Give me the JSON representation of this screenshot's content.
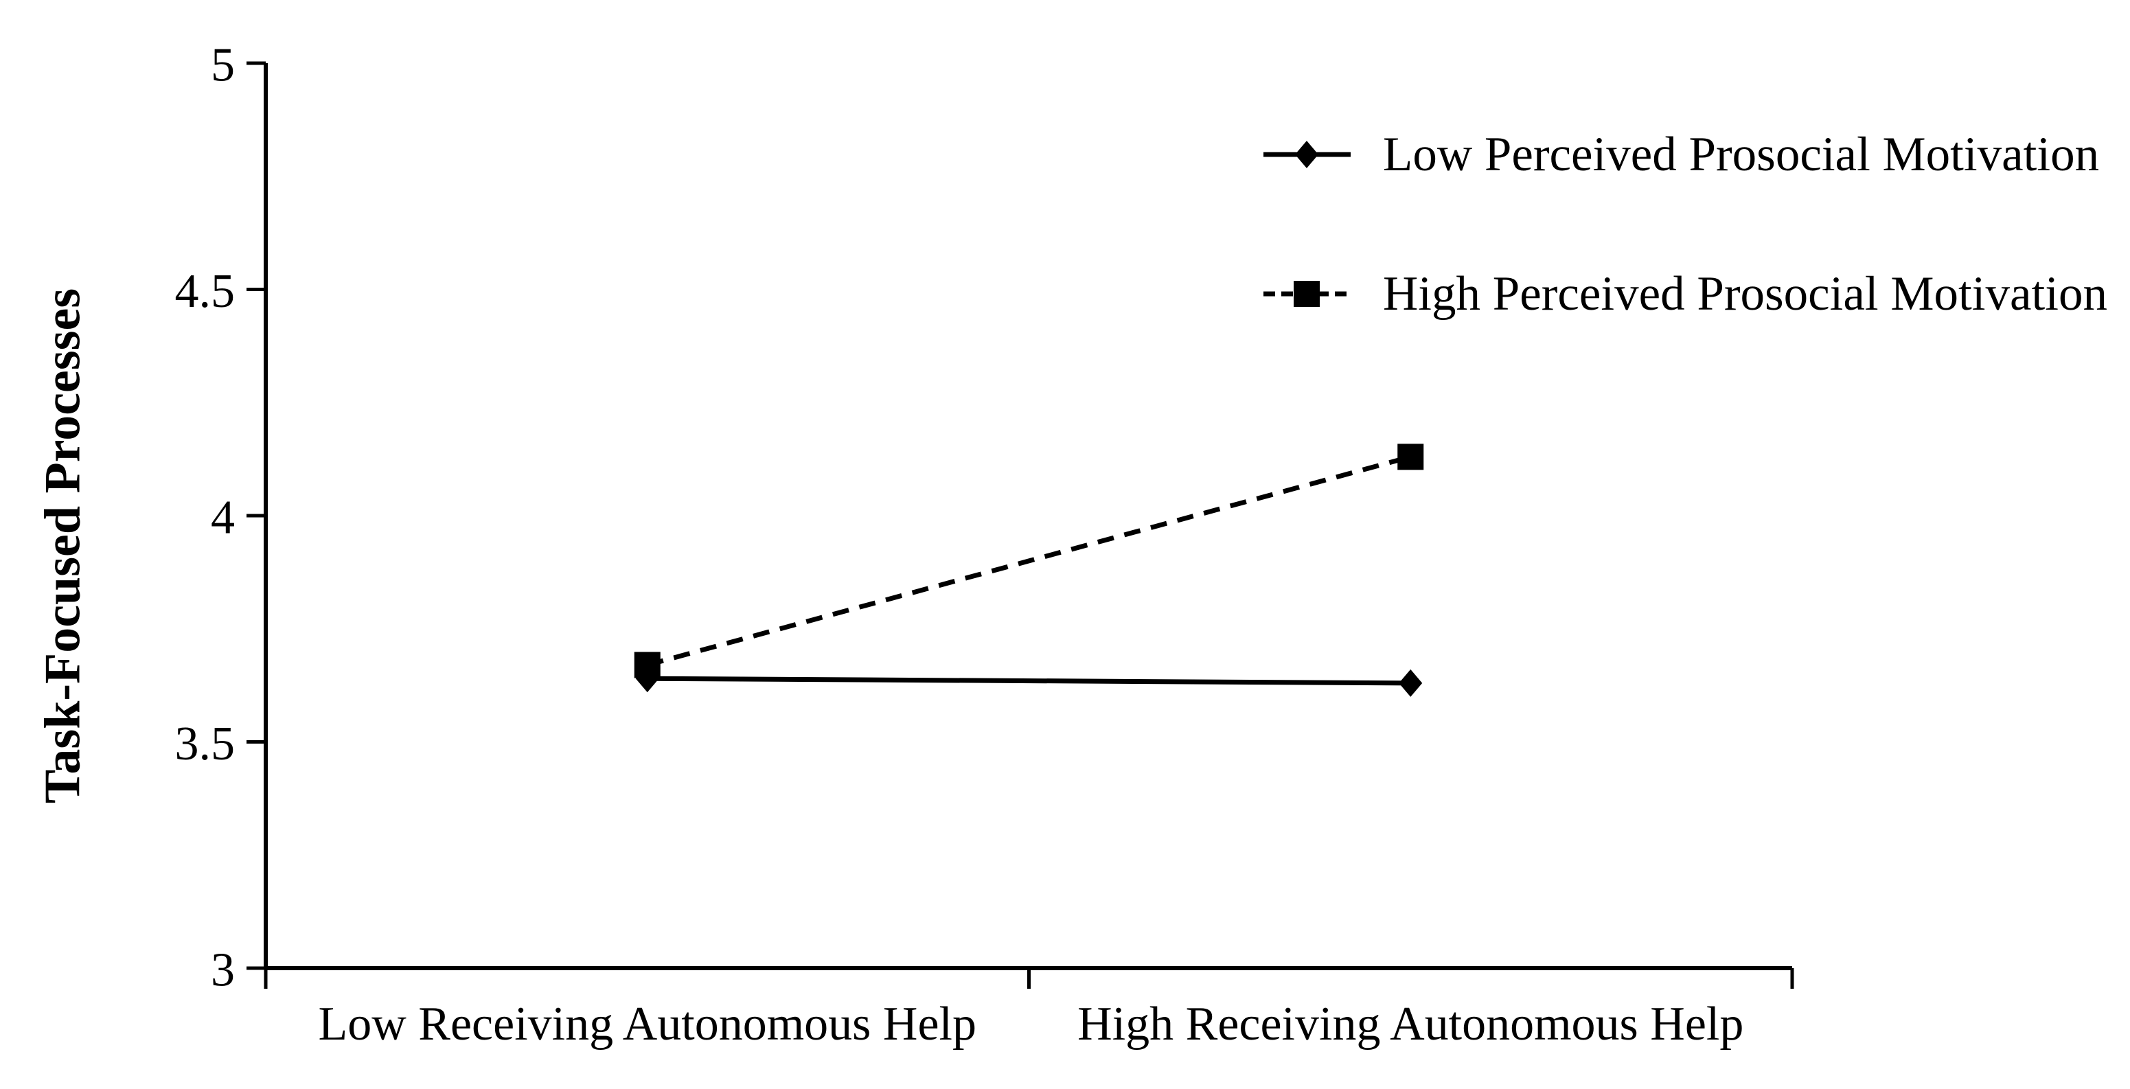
{
  "chart_data": {
    "type": "line",
    "title": "",
    "xlabel": "",
    "ylabel": "Task-Focused Processes",
    "categories": [
      "Low Receiving Autonomous Help",
      "High Receiving Autonomous Help"
    ],
    "series": [
      {
        "name": "Low Perceived Prosocial Motivation",
        "values": [
          3.64,
          3.63
        ],
        "marker": "diamond",
        "line_style": "solid"
      },
      {
        "name": "High Perceived Prosocial Motivation",
        "values": [
          3.67,
          4.13
        ],
        "marker": "square",
        "line_style": "dashed"
      }
    ],
    "ylim": [
      3,
      5
    ],
    "yticks": [
      3,
      3.5,
      4,
      4.5,
      5
    ],
    "ytick_step": 0.5,
    "grid": false,
    "legend_position": "top-right",
    "colors": {
      "foreground": "#000000",
      "background": "#ffffff"
    }
  }
}
